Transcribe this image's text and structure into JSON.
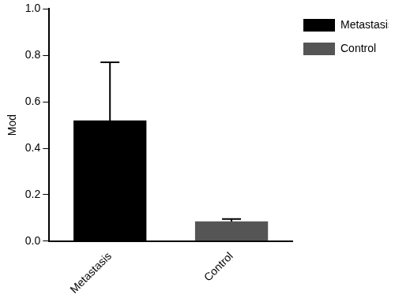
{
  "chart_data": {
    "type": "bar",
    "y_label": "Mod",
    "categories": [
      "Metastasis",
      "Control"
    ],
    "values": [
      0.52,
      0.085
    ],
    "errors": [
      0.25,
      0.01
    ],
    "colors": [
      "#000000",
      "#555555"
    ],
    "ylim": [
      0,
      1
    ],
    "yticks": [
      {
        "value": 0,
        "label": "0.0"
      },
      0.2,
      0.4,
      0.6,
      0.8,
      {
        "value": 1,
        "label": "1.0"
      }
    ],
    "grid": false,
    "legend": "top-right"
  }
}
